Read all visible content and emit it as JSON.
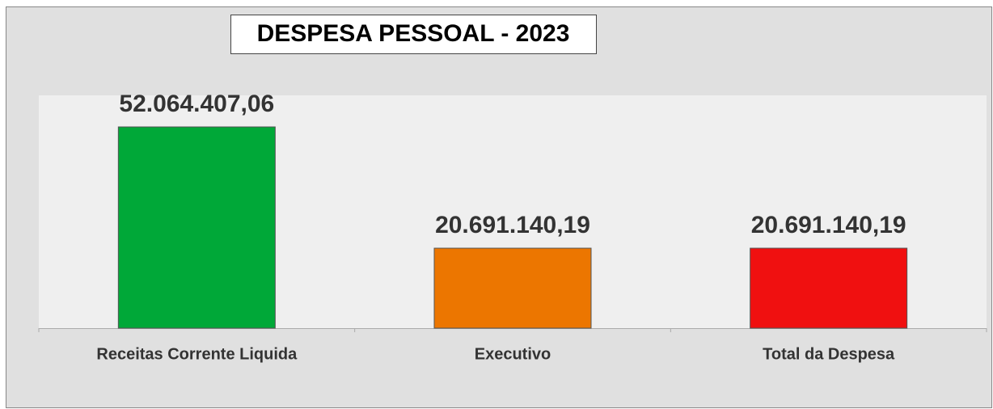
{
  "chart_data": {
    "type": "bar",
    "title": "DESPESA PESSOAL - 2023",
    "categories": [
      "Receitas Corrente Liquida",
      "Executivo",
      "Total da Despesa"
    ],
    "values": [
      52064407.06,
      20691140.19,
      20691140.19
    ],
    "value_labels": [
      "52.064.407,06",
      "20.691.140,19",
      "20.691.140,19"
    ],
    "colors": [
      "#00a838",
      "#ec7600",
      "#f01010"
    ]
  }
}
